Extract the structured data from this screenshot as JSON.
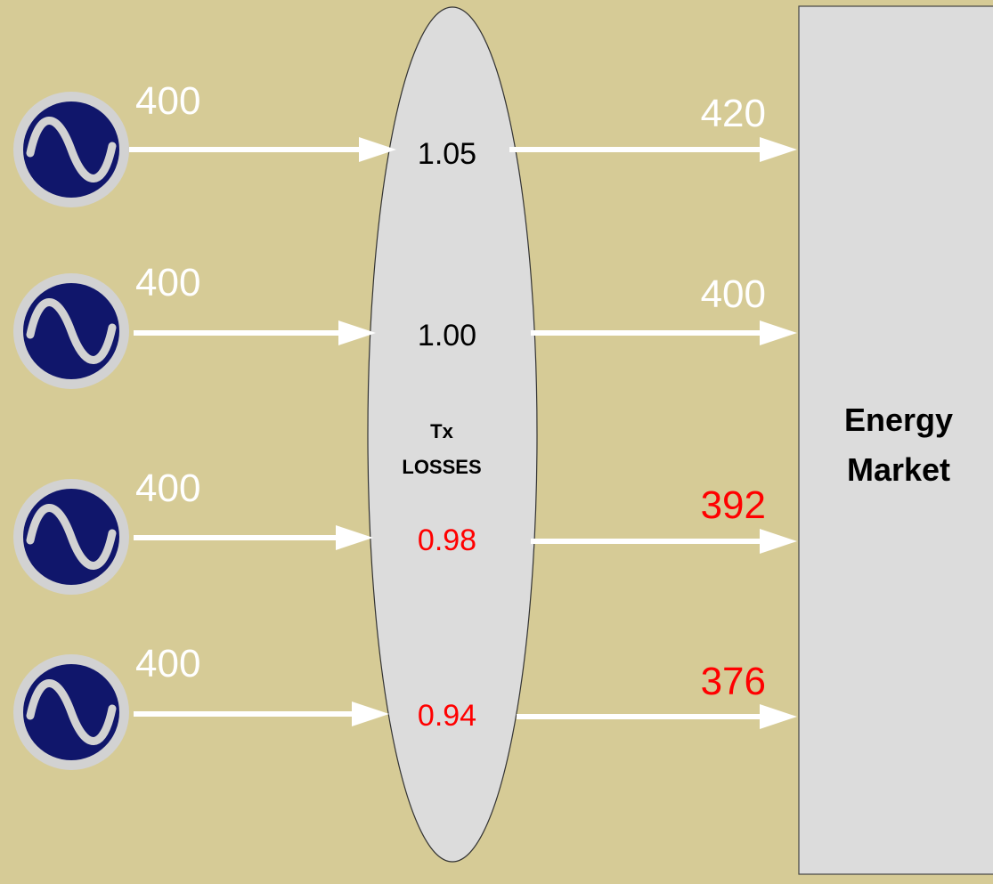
{
  "colors": {
    "background": "#d6cb96",
    "ellipse_fill": "#dcdcdc",
    "market_fill": "#dcdcdc",
    "arrow": "#ffffff",
    "generator_outer": "#d2d2d2",
    "generator_inner": "#10166b",
    "normal_text": "#000000",
    "white_text": "#ffffff",
    "loss_text": "#ff0000"
  },
  "losses_label": {
    "line1": "Tx",
    "line2": "LOSSES"
  },
  "market_label": {
    "line1": "Energy",
    "line2": "Market"
  },
  "rows": [
    {
      "input": "400",
      "factor": "1.05",
      "output": "420",
      "loss": false,
      "generator_icon": "ac-generator-icon"
    },
    {
      "input": "400",
      "factor": "1.00",
      "output": "400",
      "loss": false,
      "generator_icon": "ac-generator-icon"
    },
    {
      "input": "400",
      "factor": "0.98",
      "output": "392",
      "loss": true,
      "generator_icon": "ac-generator-icon"
    },
    {
      "input": "400",
      "factor": "0.94",
      "output": "376",
      "loss": true,
      "generator_icon": "ac-generator-icon"
    }
  ]
}
